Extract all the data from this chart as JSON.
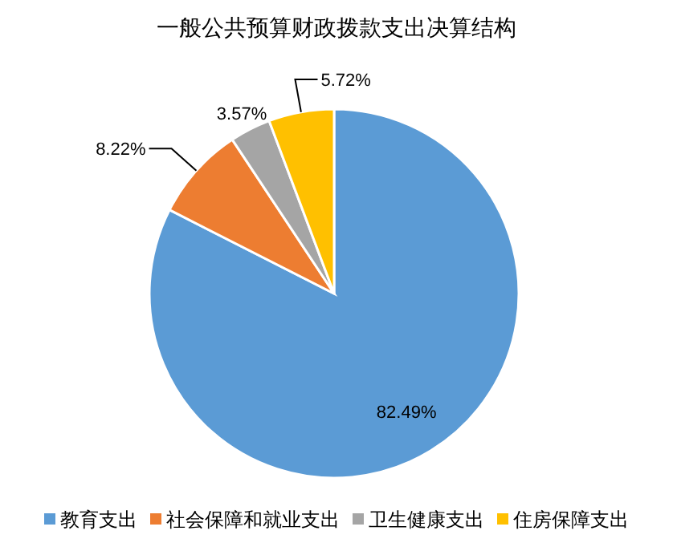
{
  "chart_data": {
    "type": "pie",
    "title": "一般公共预算财政拨款支出决算结构",
    "categories": [
      "教育支出",
      "社会保障和就业支出",
      "卫生健康支出",
      "住房保障支出"
    ],
    "values": [
      82.49,
      8.22,
      3.57,
      5.72
    ],
    "colors": [
      "#5b9bd5",
      "#ed7d31",
      "#a5a5a5",
      "#ffc000"
    ],
    "value_labels": [
      "82.49%",
      "8.22%",
      "3.57%",
      "5.72%"
    ],
    "legend": "bottom"
  }
}
